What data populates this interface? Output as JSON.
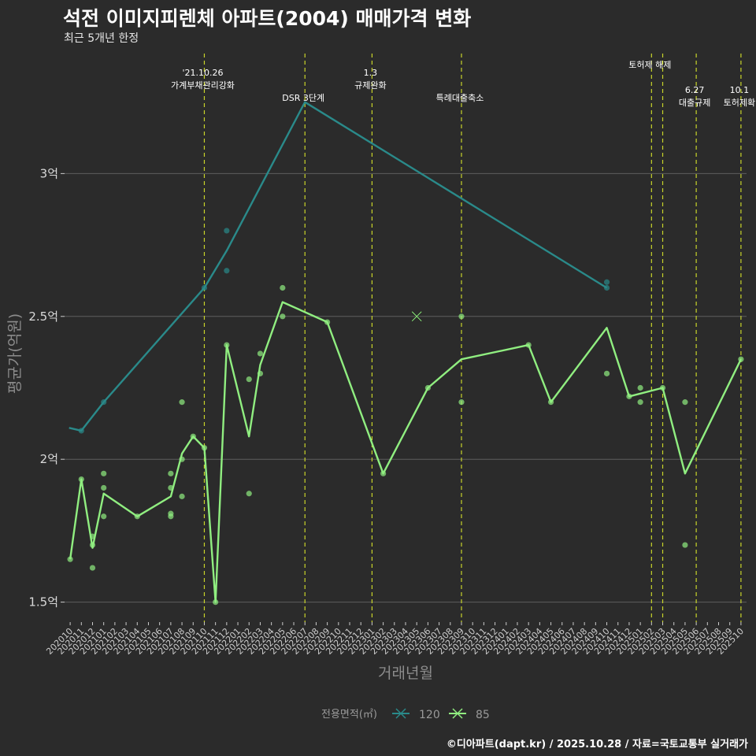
{
  "title": "석전 이미지피렌체 아파트(2004) 매매가격 변화",
  "subtitle": "최근 5개년 한정",
  "caption": "©디아파트(dapt.kr) / 2025.10.28 / 자료=국토교통부 실거래가",
  "colors": {
    "background": "#2b2b2b",
    "grid": "#5e5e5e",
    "event_line": "#c8d42a",
    "series_120": "#2a8a8a",
    "series_85": "#90ee80"
  },
  "chart_data": {
    "type": "line",
    "title": "석전 이미지피렌체 아파트(2004) 매매가격 변화",
    "xlabel": "거래년월",
    "ylabel": "평균가(억원)",
    "ylim": [
      1.43,
      3.42
    ],
    "yticks": [
      1.5,
      2.0,
      2.5,
      3.0
    ],
    "yticklabels": [
      "1.5억",
      "2억",
      "2.5억",
      "3억"
    ],
    "xlim": [
      -0.5,
      60.5
    ],
    "categories": [
      "202010",
      "202011",
      "202012",
      "202101",
      "202102",
      "202103",
      "202104",
      "202105",
      "202106",
      "202107",
      "202108",
      "202109",
      "202110",
      "202111",
      "202112",
      "202201",
      "202202",
      "202203",
      "202204",
      "202205",
      "202206",
      "202207",
      "202208",
      "202209",
      "202210",
      "202211",
      "202212",
      "202301",
      "202302",
      "202303",
      "202304",
      "202305",
      "202306",
      "202307",
      "202308",
      "202309",
      "202310",
      "202311",
      "202312",
      "202401",
      "202402",
      "202403",
      "202404",
      "202405",
      "202406",
      "202407",
      "202408",
      "202409",
      "202410",
      "202411",
      "202412",
      "202501",
      "202502",
      "202503",
      "202504",
      "202505",
      "202506",
      "202507",
      "202508",
      "202509",
      "202510"
    ],
    "series": [
      {
        "name": "120",
        "line": [
          [
            -0.1,
            2.11
          ],
          [
            1,
            2.1
          ],
          [
            3,
            2.2
          ],
          [
            12,
            2.6
          ],
          [
            14,
            2.73
          ],
          [
            21,
            3.25
          ],
          [
            48,
            2.6
          ]
        ],
        "points": [
          [
            1,
            2.1
          ],
          [
            3,
            2.2
          ],
          [
            12,
            2.6
          ],
          [
            14,
            2.8
          ],
          [
            14,
            2.66
          ],
          [
            48,
            2.62
          ],
          [
            48,
            2.6
          ]
        ]
      },
      {
        "name": "85",
        "line": [
          [
            0,
            1.65
          ],
          [
            1,
            1.93
          ],
          [
            2,
            1.69
          ],
          [
            3,
            1.88
          ],
          [
            6,
            1.8
          ],
          [
            9,
            1.87
          ],
          [
            10,
            2.02
          ],
          [
            11,
            2.08
          ],
          [
            12,
            2.04
          ],
          [
            13,
            1.5
          ],
          [
            14,
            2.4
          ],
          [
            16,
            2.08
          ],
          [
            17,
            2.33
          ],
          [
            19,
            2.55
          ],
          [
            23,
            2.48
          ],
          [
            28,
            1.95
          ],
          [
            32,
            2.25
          ],
          [
            35,
            2.35
          ],
          [
            41,
            2.4
          ],
          [
            43,
            2.2
          ],
          [
            48,
            2.46
          ],
          [
            50,
            2.22
          ],
          [
            53,
            2.25
          ],
          [
            55,
            1.95
          ],
          [
            60,
            2.35
          ]
        ],
        "points": [
          [
            0,
            1.65
          ],
          [
            1,
            1.93
          ],
          [
            2,
            1.73
          ],
          [
            2,
            1.62
          ],
          [
            2,
            1.7
          ],
          [
            3,
            1.95
          ],
          [
            3,
            1.9
          ],
          [
            3,
            1.8
          ],
          [
            6,
            1.8
          ],
          [
            9,
            1.95
          ],
          [
            9,
            1.9
          ],
          [
            9,
            1.81
          ],
          [
            9,
            1.8
          ],
          [
            10,
            2.2
          ],
          [
            10,
            2.0
          ],
          [
            10,
            1.87
          ],
          [
            11,
            2.08
          ],
          [
            12,
            2.04
          ],
          [
            13,
            1.5
          ],
          [
            14,
            2.4
          ],
          [
            16,
            2.28
          ],
          [
            16,
            1.88
          ],
          [
            17,
            2.37
          ],
          [
            17,
            2.3
          ],
          [
            19,
            2.6
          ],
          [
            19,
            2.5
          ],
          [
            23,
            2.48
          ],
          [
            28,
            1.95
          ],
          [
            32,
            2.25
          ],
          [
            35,
            2.5
          ],
          [
            35,
            2.2
          ],
          [
            41,
            2.4
          ],
          [
            43,
            2.2
          ],
          [
            48,
            2.3
          ],
          [
            50,
            2.22
          ],
          [
            51,
            2.25
          ],
          [
            51,
            2.2
          ],
          [
            53,
            2.25
          ],
          [
            55,
            2.2
          ],
          [
            55,
            1.7
          ],
          [
            60,
            2.35
          ]
        ],
        "cross": [
          31,
          2.5
        ]
      }
    ],
    "events": [
      {
        "x": 12,
        "lines": [
          "'21.10.26",
          "가계부채관리강화"
        ],
        "row": 0
      },
      {
        "x": 21,
        "lines": [
          "DSR 3단계"
        ],
        "row": 2
      },
      {
        "x": 27,
        "lines": [
          "1.3",
          "규제완화"
        ],
        "row": 0
      },
      {
        "x": 35,
        "lines": [
          "특례대출축소"
        ],
        "row": 2
      },
      {
        "x": 52,
        "lines": [
          "토허제 해제"
        ],
        "row": 1
      },
      {
        "x": 53,
        "lines": [],
        "row": 1
      },
      {
        "x": 56,
        "lines": [
          "6.27",
          "대출규제"
        ],
        "row": 3
      },
      {
        "x": 60,
        "lines": [
          "10.1",
          "토허제확"
        ],
        "row": 3
      }
    ],
    "legend": {
      "title": "전용면적(㎡)",
      "entries": [
        "120",
        "85"
      ],
      "position": "bottom"
    }
  }
}
